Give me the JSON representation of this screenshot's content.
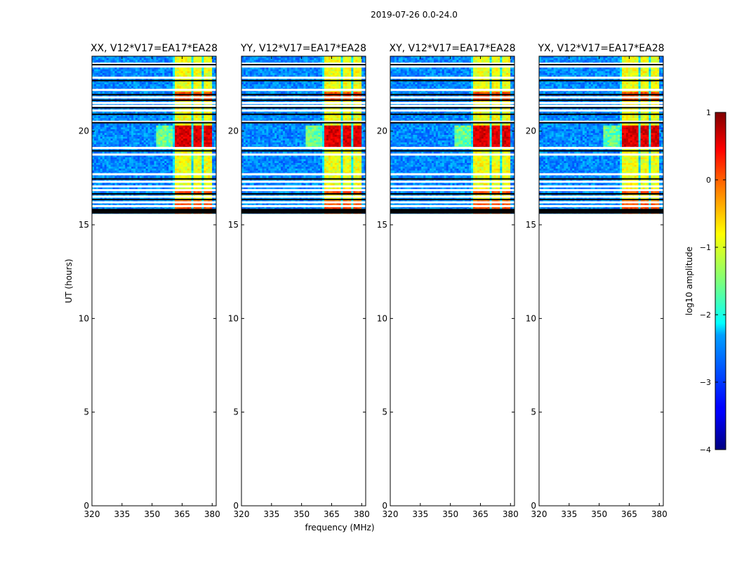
{
  "figure": {
    "suptitle": "2019-07-26 0.0-24.0"
  },
  "chart_data": {
    "type": "heatmap",
    "panels": [
      {
        "title": "XX, V12*V17=EA17*EA28",
        "show_xlabel": false,
        "show_ylabel": true
      },
      {
        "title": "YY, V12*V17=EA17*EA28",
        "show_xlabel": true,
        "show_ylabel": false
      },
      {
        "title": "XY, V12*V17=EA17*EA28",
        "show_xlabel": false,
        "show_ylabel": false
      },
      {
        "title": "YX, V12*V17=EA17*EA28",
        "show_xlabel": false,
        "show_ylabel": false
      }
    ],
    "xlabel": "frequency (MHz)",
    "ylabel": "UT (hours)",
    "xlim": [
      320,
      382
    ],
    "ylim": [
      0,
      24
    ],
    "xticks": [
      320,
      335,
      350,
      365,
      380
    ],
    "yticks": [
      0,
      5,
      10,
      15,
      20
    ],
    "data_time_range": [
      15.6,
      24.0
    ],
    "colorbar": {
      "label": "log10 amplitude",
      "range": [
        -4,
        1
      ],
      "ticks": [
        -4,
        -3,
        -2,
        -1,
        0,
        1
      ],
      "tick_labels": [
        "−4",
        "−3",
        "−2",
        "−1",
        "0",
        "1"
      ],
      "colormap": "jet"
    }
  }
}
